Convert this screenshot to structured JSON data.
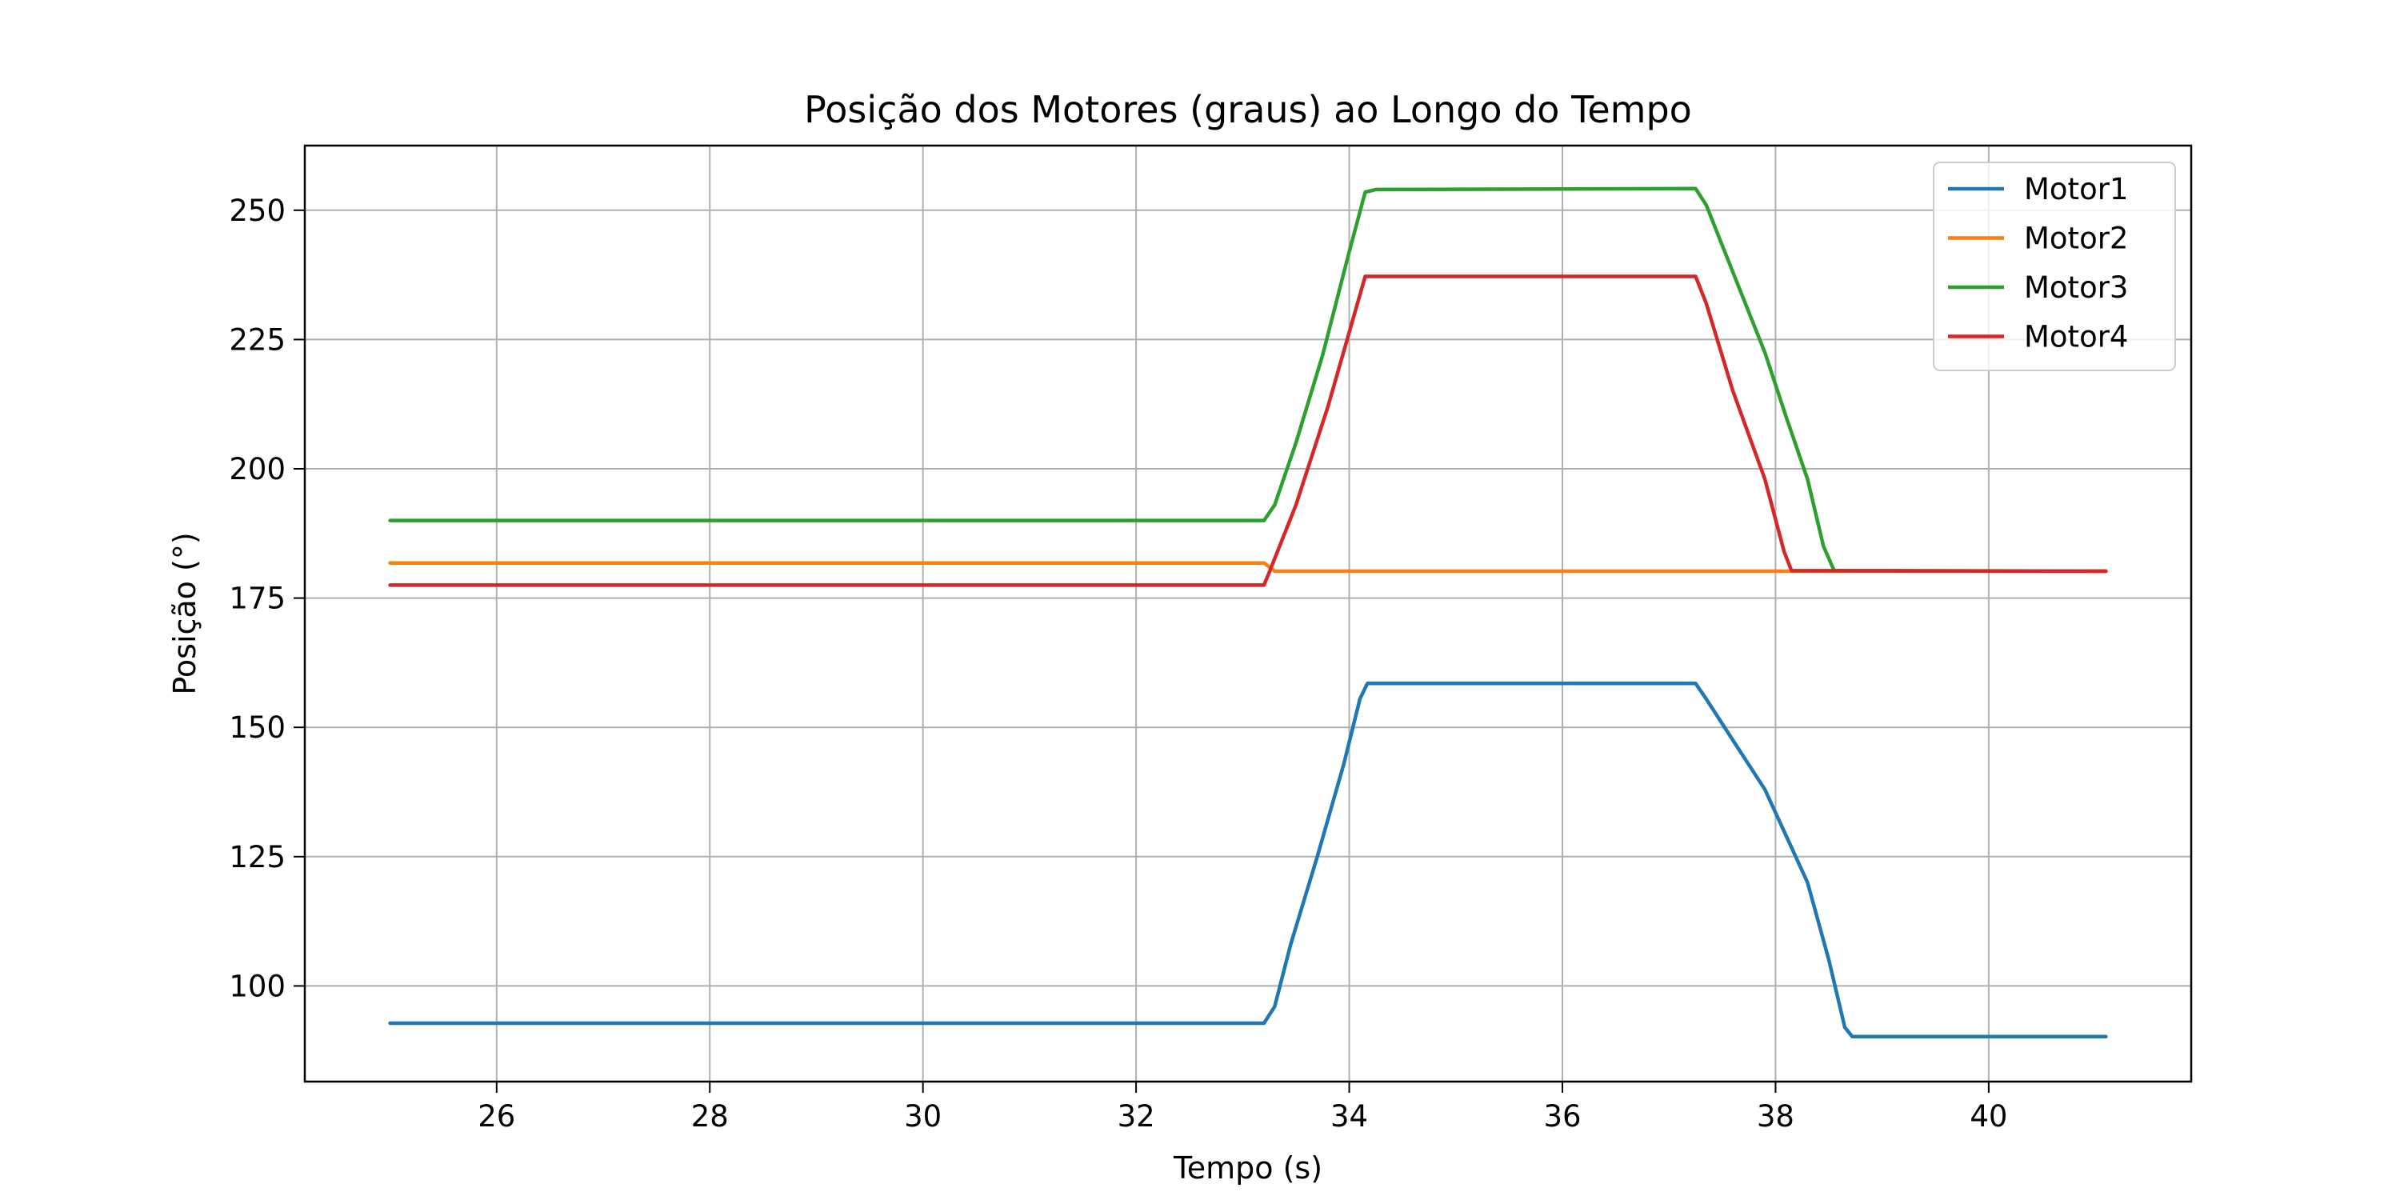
{
  "chart_data": {
    "type": "line",
    "title": "Posição dos Motores (graus) ao Longo do Tempo",
    "xlabel": "Tempo (s)",
    "ylabel": "Posição (°)",
    "xlim": [
      24.2,
      41.9
    ],
    "ylim": [
      81.5,
      262.5
    ],
    "xticks": [
      26,
      28,
      30,
      32,
      34,
      36,
      38,
      40
    ],
    "yticks": [
      100,
      125,
      150,
      175,
      200,
      225,
      250
    ],
    "grid": true,
    "legend_position": "top-right",
    "series": [
      {
        "name": "Motor1",
        "color": "#1f77b4",
        "points": [
          [
            25.0,
            92.8
          ],
          [
            33.2,
            92.8
          ],
          [
            33.3,
            96.0
          ],
          [
            33.45,
            108.0
          ],
          [
            33.7,
            125.0
          ],
          [
            33.95,
            143.0
          ],
          [
            34.1,
            155.5
          ],
          [
            34.17,
            158.5
          ],
          [
            37.25,
            158.5
          ],
          [
            37.35,
            155.5
          ],
          [
            37.6,
            147.5
          ],
          [
            37.9,
            138.0
          ],
          [
            38.1,
            129.0
          ],
          [
            38.3,
            120.0
          ],
          [
            38.5,
            105.0
          ],
          [
            38.65,
            92.0
          ],
          [
            38.72,
            90.2
          ],
          [
            41.1,
            90.2
          ]
        ]
      },
      {
        "name": "Motor2",
        "color": "#ff7f0e",
        "points": [
          [
            25.0,
            181.8
          ],
          [
            33.2,
            181.8
          ],
          [
            33.3,
            180.2
          ],
          [
            41.1,
            180.2
          ]
        ]
      },
      {
        "name": "Motor3",
        "color": "#2ca02c",
        "points": [
          [
            25.0,
            190.0
          ],
          [
            33.2,
            190.0
          ],
          [
            33.3,
            193.0
          ],
          [
            33.5,
            205.0
          ],
          [
            33.75,
            222.0
          ],
          [
            34.0,
            242.0
          ],
          [
            34.15,
            253.5
          ],
          [
            34.25,
            254.0
          ],
          [
            37.25,
            254.2
          ],
          [
            37.35,
            251.0
          ],
          [
            37.6,
            238.0
          ],
          [
            37.9,
            222.5
          ],
          [
            38.1,
            210.0
          ],
          [
            38.3,
            198.0
          ],
          [
            38.45,
            185.0
          ],
          [
            38.55,
            180.3
          ],
          [
            41.1,
            180.2
          ]
        ]
      },
      {
        "name": "Motor4",
        "color": "#d62728",
        "points": [
          [
            25.0,
            177.5
          ],
          [
            33.2,
            177.5
          ],
          [
            33.25,
            180.0
          ],
          [
            33.5,
            193.0
          ],
          [
            33.8,
            212.0
          ],
          [
            34.05,
            230.0
          ],
          [
            34.15,
            237.2
          ],
          [
            37.25,
            237.2
          ],
          [
            37.35,
            232.0
          ],
          [
            37.6,
            215.0
          ],
          [
            37.9,
            198.0
          ],
          [
            38.08,
            184.0
          ],
          [
            38.15,
            180.3
          ],
          [
            41.1,
            180.2
          ]
        ]
      }
    ]
  }
}
